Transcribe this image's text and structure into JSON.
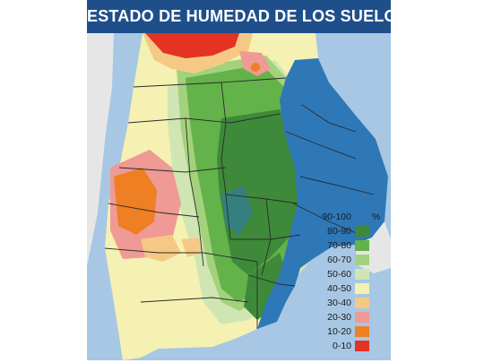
{
  "header": {
    "title": "ESTADO DE HUMEDAD DE LOS SUELOS"
  },
  "legend": {
    "unit": "%",
    "items": [
      {
        "label": "90-100",
        "color": "#2e78b8"
      },
      {
        "label": "80-90",
        "color": "#3e8a3a"
      },
      {
        "label": "70-80",
        "color": "#64b24a"
      },
      {
        "label": "60-70",
        "color": "#a4d27c"
      },
      {
        "label": "50-60",
        "color": "#cfe6b4"
      },
      {
        "label": "40-50",
        "color": "#f5f1b2"
      },
      {
        "label": "30-40",
        "color": "#f5c985"
      },
      {
        "label": "20-30",
        "color": "#ef9a94"
      },
      {
        "label": "10-20",
        "color": "#ee7f22"
      },
      {
        "label": "0-10",
        "color": "#e43224"
      }
    ]
  },
  "map": {
    "background_color": "#a7c7e4",
    "land_outside_color": "#e6e6e6"
  }
}
